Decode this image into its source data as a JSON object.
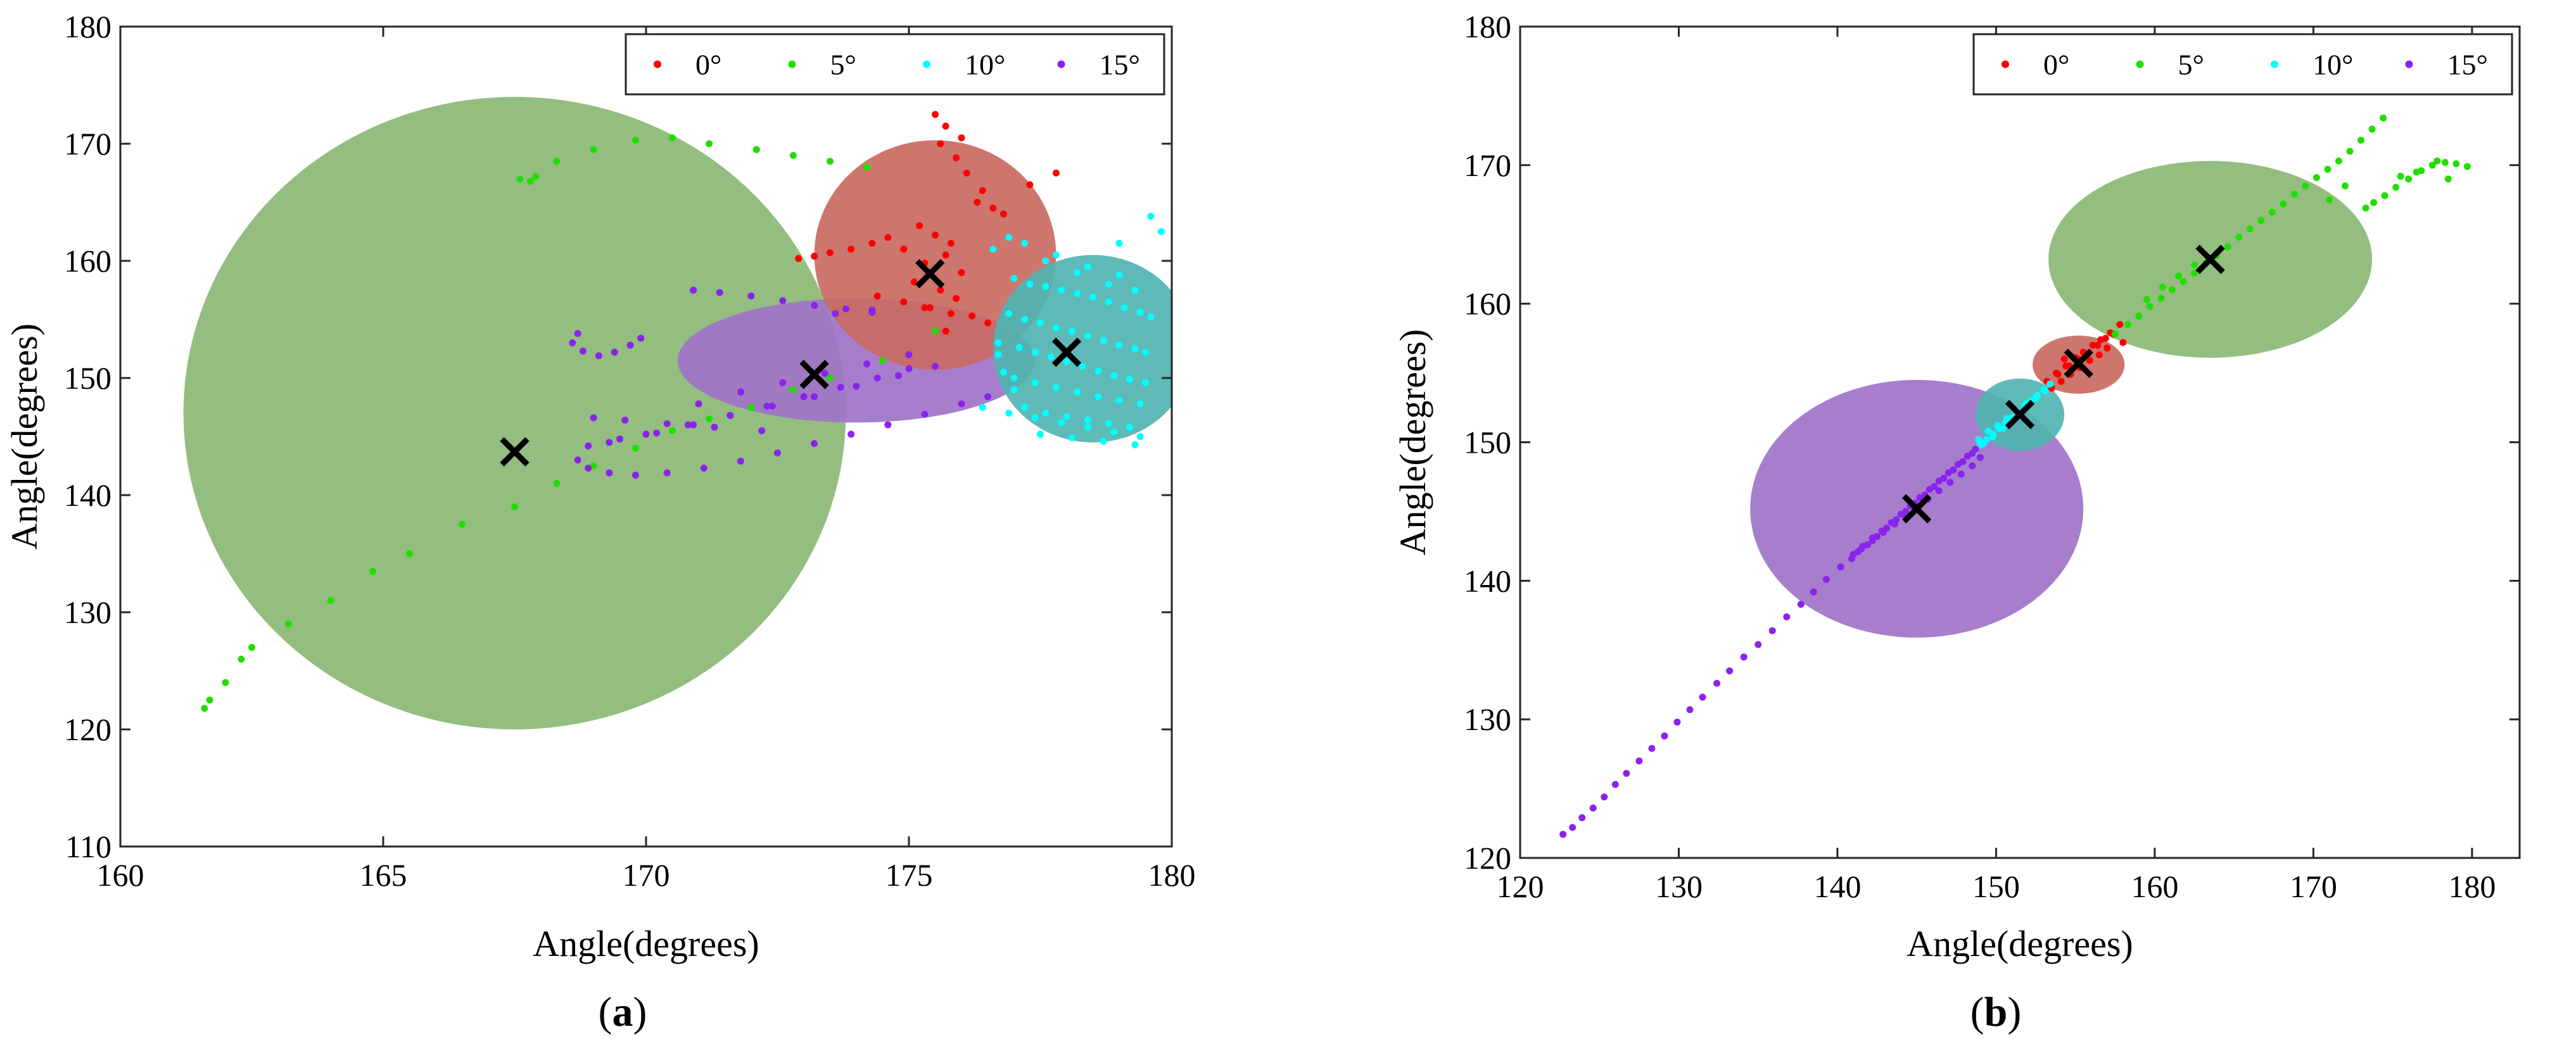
{
  "chart_data": [
    {
      "type": "scatter",
      "panel_label": "a",
      "title": "",
      "xlabel": "Angle(degrees)",
      "ylabel": "Angle(degrees)",
      "xlim": [
        160,
        180
      ],
      "ylim": [
        110,
        180
      ],
      "xticks": [
        160,
        165,
        170,
        175,
        180
      ],
      "yticks": [
        110,
        120,
        130,
        140,
        150,
        160,
        170,
        180
      ],
      "legend_position": "top-right",
      "legend": [
        "0°",
        "5°",
        "10°",
        "15°"
      ],
      "colors": {
        "0°": "#ff0000",
        "5°": "#22dd00",
        "10°": "#00ffff",
        "15°": "#8b22ee"
      },
      "ellipse_colors": {
        "0°": "#c96a62",
        "5°": "#8ab874",
        "10°": "#4fb4b0",
        "15°": "#9f73c8"
      },
      "regions": [
        {
          "series": "5°",
          "cx": 167.5,
          "cy": 147,
          "rx": 6.3,
          "ry": 27,
          "ymin": 119.5
        },
        {
          "series": "15°",
          "cx": 174,
          "cy": 151.5,
          "rx": 3.4,
          "ry": 5.3
        },
        {
          "series": "0°",
          "cx": 175.5,
          "cy": 160.5,
          "rx": 2.3,
          "ry": 9.8
        },
        {
          "series": "10°",
          "cx": 178.5,
          "cy": 152.5,
          "rx": 1.9,
          "ry": 8,
          "xmax": 180
        }
      ],
      "centers": [
        {
          "series": "5°",
          "x": 167.5,
          "y": 143.7
        },
        {
          "series": "15°",
          "x": 173.2,
          "y": 150.3
        },
        {
          "series": "0°",
          "x": 175.4,
          "y": 158.9
        },
        {
          "series": "10°",
          "x": 178.0,
          "y": 152.2
        }
      ],
      "series": [
        {
          "name": "0°",
          "x": [
            175.6,
            175.9,
            176.1,
            176.4,
            176.6,
            175.2,
            175.5,
            175.8,
            174.9,
            175.7,
            175.3,
            176.0,
            175.1,
            175.6,
            175.9,
            175.3,
            176.2,
            176.5,
            175.7,
            174.6,
            174.3,
            173.9,
            173.5,
            173.2,
            172.9,
            174.4,
            174.9,
            175.4,
            175.8,
            176.3,
            176.8,
            177.3,
            177.8,
            175.5,
            175.7,
            176.0
          ],
          "y": [
            170.0,
            168.8,
            167.5,
            166.0,
            164.5,
            163.0,
            162.2,
            161.5,
            161.0,
            160.5,
            159.8,
            159.0,
            158.2,
            157.5,
            156.8,
            156.0,
            155.3,
            154.7,
            154.0,
            162.0,
            161.5,
            161.0,
            160.7,
            160.4,
            160.2,
            157.0,
            156.5,
            156.0,
            155.5,
            165.0,
            164.0,
            166.5,
            167.5,
            172.5,
            171.5,
            170.5
          ]
        },
        {
          "name": "5°",
          "x": [
            161.7,
            162.0,
            162.5,
            163.2,
            164.0,
            164.8,
            165.5,
            166.5,
            167.5,
            168.3,
            169.0,
            169.8,
            170.5,
            171.2,
            172.0,
            172.8,
            173.5,
            174.5,
            175.5,
            167.6,
            168.3,
            169.0,
            169.8,
            170.5,
            171.2,
            172.1,
            172.8,
            173.5,
            174.2,
            167.8,
            167.9,
            161.6,
            162.3
          ],
          "y": [
            122.5,
            124.0,
            127.0,
            129.0,
            131.0,
            133.5,
            135.0,
            137.5,
            139.0,
            141.0,
            142.5,
            144.0,
            145.5,
            146.5,
            147.5,
            149.0,
            150.0,
            151.5,
            154.0,
            167.0,
            168.5,
            169.5,
            170.3,
            170.5,
            170.0,
            169.5,
            169.0,
            168.5,
            168.0,
            166.8,
            167.2,
            121.8,
            126.0
          ]
        },
        {
          "name": "10°",
          "x": [
            177.0,
            177.3,
            177.6,
            177.9,
            178.2,
            178.5,
            178.8,
            179.1,
            179.4,
            179.6,
            176.9,
            177.2,
            177.5,
            177.8,
            178.1,
            178.4,
            178.7,
            179.0,
            179.3,
            179.5,
            176.7,
            177.1,
            177.4,
            177.7,
            178.0,
            178.3,
            178.6,
            178.9,
            179.2,
            179.5,
            176.8,
            177.0,
            177.4,
            177.8,
            178.2,
            178.6,
            179.0,
            179.4,
            177.2,
            177.6,
            178.0,
            178.4,
            178.8,
            179.2,
            177.5,
            178.1,
            178.7,
            179.3,
            176.4,
            176.9,
            177.4,
            177.9,
            178.4,
            178.9,
            179.4,
            176.6,
            177.2,
            177.8,
            178.4,
            179.0,
            176.9,
            177.6,
            178.2,
            178.8,
            179.3,
            177.0,
            176.7,
            179.6,
            179.8,
            179.0
          ],
          "y": [
            158.5,
            158.0,
            157.8,
            157.5,
            157.2,
            156.9,
            156.5,
            156.0,
            155.6,
            155.2,
            155.5,
            155.0,
            154.7,
            154.3,
            154.0,
            153.6,
            153.2,
            152.8,
            152.5,
            152.2,
            153.0,
            152.6,
            152.2,
            151.8,
            151.4,
            151.0,
            150.6,
            150.2,
            149.9,
            149.6,
            150.5,
            150.0,
            149.6,
            149.2,
            148.8,
            148.4,
            148.1,
            147.8,
            147.5,
            147.0,
            146.7,
            146.4,
            146.1,
            145.8,
            145.2,
            144.9,
            144.6,
            144.3,
            147.5,
            147.0,
            146.6,
            146.2,
            145.8,
            145.4,
            145.0,
            161.0,
            161.5,
            160.5,
            159.5,
            158.8,
            162.0,
            160.0,
            159.0,
            158.0,
            157.5,
            149.0,
            152.0,
            163.8,
            162.5,
            161.5
          ]
        },
        {
          "name": "15°",
          "x": [
            170.9,
            171.4,
            172.0,
            172.6,
            173.2,
            173.8,
            174.3,
            168.7,
            168.6,
            168.8,
            169.1,
            169.4,
            169.7,
            169.9,
            168.9,
            169.5,
            170.2,
            170.9,
            171.6,
            172.3,
            173.0,
            173.7,
            174.4,
            175.0,
            169.3,
            170.0,
            170.8,
            171.6,
            172.4,
            173.2,
            174.0,
            174.8,
            175.5,
            168.7,
            168.9,
            169.3,
            169.8,
            170.4,
            171.1,
            171.8,
            172.5,
            173.2,
            173.9,
            174.6,
            175.3,
            176.0,
            176.5,
            172.2,
            171.3,
            170.4,
            169.6,
            169.0,
            171.0,
            171.8,
            172.6,
            173.4,
            174.2,
            175.0,
            173.6,
            174.3
          ],
          "y": [
            157.5,
            157.3,
            157.0,
            156.6,
            156.2,
            155.9,
            155.8,
            153.8,
            153.0,
            152.3,
            151.9,
            152.2,
            152.8,
            153.4,
            144.2,
            144.8,
            145.3,
            146.0,
            146.8,
            147.6,
            148.4,
            149.2,
            150.0,
            150.8,
            144.5,
            145.2,
            146.0,
            146.8,
            147.6,
            148.4,
            149.3,
            150.2,
            151.0,
            143.0,
            142.3,
            141.9,
            141.7,
            141.9,
            142.3,
            142.9,
            143.6,
            144.4,
            145.2,
            146.0,
            146.9,
            147.8,
            148.4,
            145.5,
            145.8,
            146.1,
            146.4,
            146.6,
            147.8,
            148.8,
            149.6,
            150.4,
            151.2,
            152.0,
            155.5,
            155.6
          ]
        }
      ]
    },
    {
      "type": "scatter",
      "panel_label": "b",
      "title": "",
      "xlabel": "Angle(degrees)",
      "ylabel": "Angle(degrees)",
      "xlim": [
        120,
        183
      ],
      "ylim": [
        120,
        180
      ],
      "xticks": [
        120,
        130,
        140,
        150,
        160,
        170,
        180
      ],
      "yticks": [
        120,
        130,
        140,
        150,
        160,
        170,
        180
      ],
      "legend_position": "top-right",
      "legend": [
        "0°",
        "5°",
        "10°",
        "15°"
      ],
      "colors": {
        "0°": "#ff0000",
        "5°": "#22dd00",
        "10°": "#00ffff",
        "15°": "#8b22ee"
      },
      "ellipse_colors": {
        "0°": "#c96a62",
        "5°": "#8ab874",
        "10°": "#4fb4b0",
        "15°": "#9f73c8"
      },
      "regions": [
        {
          "series": "15°",
          "cx": 145,
          "cy": 145.2,
          "rx": 10.5,
          "ry": 9.3
        },
        {
          "series": "10°",
          "cx": 151.5,
          "cy": 152.0,
          "rx": 2.8,
          "ry": 2.6
        },
        {
          "series": "0°",
          "cx": 155.2,
          "cy": 155.6,
          "rx": 2.9,
          "ry": 2.1
        },
        {
          "series": "5°",
          "cx": 163.5,
          "cy": 163.2,
          "rx": 10.2,
          "ry": 7.1
        }
      ],
      "centers": [
        {
          "series": "15°",
          "x": 145.0,
          "y": 145.2
        },
        {
          "series": "10°",
          "x": 151.5,
          "y": 152.0
        },
        {
          "series": "0°",
          "x": 155.2,
          "y": 155.7
        },
        {
          "series": "5°",
          "x": 163.5,
          "y": 163.2
        }
      ],
      "series": [
        {
          "name": "0°",
          "x": [
            153.2,
            153.8,
            154.4,
            155.0,
            155.5,
            156.1,
            156.6,
            157.2,
            157.8,
            153.5,
            154.1,
            154.7,
            155.3,
            155.9,
            156.5,
            157.0,
            153.9,
            154.6,
            155.2,
            155.8,
            156.4,
            156.9,
            157.4,
            158.0,
            154.3
          ],
          "y": [
            154.4,
            155.0,
            155.5,
            156.1,
            156.5,
            157.0,
            157.4,
            157.9,
            158.5,
            153.9,
            154.4,
            154.9,
            155.4,
            155.9,
            156.3,
            156.8,
            154.9,
            155.5,
            156.0,
            156.4,
            157.0,
            157.5,
            157.8,
            157.2,
            156.0
          ]
        },
        {
          "name": "5°",
          "x": [
            157.5,
            158.3,
            159.0,
            159.7,
            160.4,
            161.1,
            161.8,
            162.5,
            163.2,
            163.9,
            164.6,
            165.3,
            166.0,
            166.7,
            167.4,
            168.1,
            168.8,
            169.5,
            170.2,
            170.9,
            171.6,
            172.3,
            173.0,
            173.7,
            174.4,
            159.5,
            160.5,
            161.5,
            162.5,
            173.3,
            173.8,
            174.5,
            175.2,
            176.0,
            176.8,
            177.5,
            178.3,
            179.0,
            179.7,
            175.5,
            176.5,
            177.8,
            178.5,
            171.0,
            172.0
          ],
          "y": [
            157.8,
            158.5,
            159.1,
            159.8,
            160.4,
            161.0,
            161.6,
            162.2,
            162.9,
            163.5,
            164.1,
            164.8,
            165.4,
            166.0,
            166.6,
            167.2,
            167.9,
            168.5,
            169.1,
            169.7,
            170.3,
            171.0,
            171.8,
            172.6,
            173.4,
            160.3,
            161.2,
            162.0,
            162.8,
            166.9,
            167.3,
            167.8,
            168.4,
            169.0,
            169.6,
            170.0,
            170.2,
            170.1,
            169.9,
            169.2,
            169.5,
            170.3,
            169.0,
            167.5,
            168.5
          ]
        },
        {
          "name": "10°",
          "x": [
            148.6,
            149.0,
            149.4,
            149.8,
            150.2,
            150.6,
            151.0,
            151.4,
            151.8,
            152.2,
            152.6,
            153.0,
            153.4,
            148.9,
            149.5,
            150.1,
            150.7,
            151.3,
            151.9,
            152.5,
            153.1,
            149.2,
            149.8,
            150.4
          ],
          "y": [
            149.3,
            149.8,
            150.2,
            150.6,
            151.0,
            151.4,
            151.8,
            152.2,
            152.6,
            153.0,
            153.4,
            153.8,
            154.2,
            150.2,
            150.8,
            151.2,
            151.7,
            152.3,
            152.8,
            153.2,
            153.7,
            149.9,
            150.4,
            151.0
          ]
        },
        {
          "name": "15°",
          "x": [
            122.7,
            123.3,
            123.9,
            124.6,
            125.3,
            126.0,
            126.7,
            127.5,
            128.3,
            129.1,
            129.9,
            130.7,
            131.5,
            132.4,
            133.2,
            134.1,
            135.0,
            135.9,
            136.8,
            137.7,
            138.5,
            139.3,
            140.2,
            141.0,
            141.6,
            142.2,
            142.8,
            143.4,
            144.0,
            144.6,
            145.2,
            145.8,
            146.4,
            147.0,
            147.6,
            148.2,
            148.7,
            141.3,
            141.9,
            142.5,
            143.1,
            143.7,
            144.3,
            144.9,
            145.5,
            146.1,
            146.7,
            147.3,
            147.9,
            148.5,
            140.9,
            141.5,
            142.2,
            142.9,
            143.6,
            144.3,
            145.0,
            145.7,
            146.4,
            147.1,
            147.8,
            148.5,
            149.0
          ],
          "y": [
            121.7,
            122.2,
            122.9,
            123.6,
            124.4,
            125.3,
            126.1,
            127.0,
            127.9,
            128.8,
            129.8,
            130.7,
            131.6,
            132.6,
            133.5,
            134.5,
            135.4,
            136.4,
            137.4,
            138.3,
            139.2,
            140.1,
            141.0,
            141.9,
            142.5,
            143.1,
            143.6,
            144.2,
            144.8,
            145.4,
            146.0,
            146.6,
            147.2,
            147.8,
            148.4,
            149.0,
            149.5,
            142.1,
            142.6,
            143.2,
            143.8,
            144.4,
            145.0,
            145.6,
            146.2,
            146.8,
            147.4,
            148.0,
            148.6,
            149.2,
            141.6,
            142.3,
            142.9,
            143.5,
            144.1,
            144.7,
            145.3,
            145.9,
            146.5,
            147.1,
            147.7,
            148.3,
            148.9
          ]
        }
      ]
    }
  ]
}
